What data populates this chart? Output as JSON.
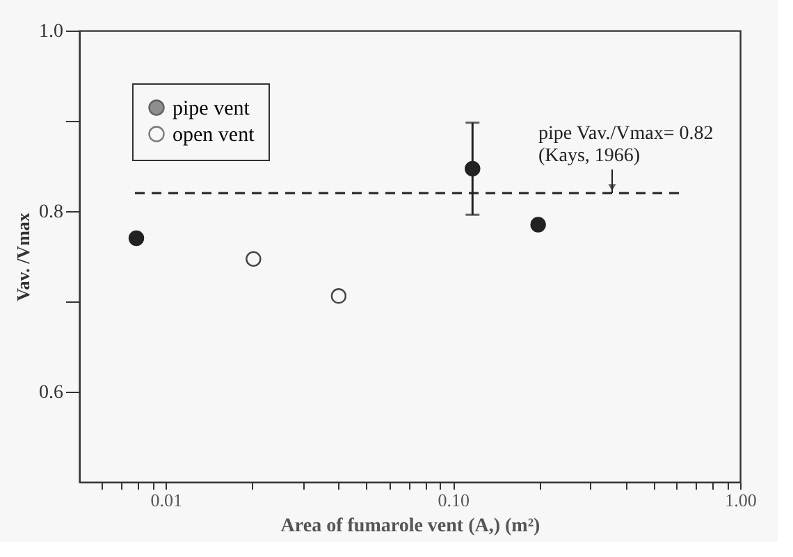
{
  "chart_data": {
    "type": "scatter",
    "xlabel": "Area of fumarole vent (A,)  (m²)",
    "ylabel": "Vav. /Vmax",
    "log": "x",
    "xlim": [
      0.005,
      1.0
    ],
    "xticks": [
      {
        "value": 0.006,
        "label": null
      },
      {
        "value": 0.007,
        "label": null
      },
      {
        "value": 0.008,
        "label": null
      },
      {
        "value": 0.009,
        "label": null
      },
      {
        "value": 0.01,
        "label": "0.01"
      },
      {
        "value": 0.02,
        "label": null
      },
      {
        "value": 0.03,
        "label": null
      },
      {
        "value": 0.04,
        "label": null
      },
      {
        "value": 0.05,
        "label": null
      },
      {
        "value": 0.06,
        "label": null
      },
      {
        "value": 0.07,
        "label": null
      },
      {
        "value": 0.08,
        "label": null
      },
      {
        "value": 0.09,
        "label": null
      },
      {
        "value": 0.1,
        "label": "0.10"
      },
      {
        "value": 0.2,
        "label": null
      },
      {
        "value": 0.3,
        "label": null
      },
      {
        "value": 0.4,
        "label": null
      },
      {
        "value": 0.5,
        "label": null
      },
      {
        "value": 0.6,
        "label": null
      },
      {
        "value": 0.7,
        "label": null
      },
      {
        "value": 0.8,
        "label": null
      },
      {
        "value": 0.9,
        "label": null
      },
      {
        "value": 1.0,
        "label": "1.00"
      }
    ],
    "ylim": [
      0.5,
      1.0
    ],
    "yticks": [
      0.6,
      {
        "value": 0.7,
        "label": null
      },
      0.8,
      {
        "value": 0.9,
        "label": null
      },
      {
        "value": 1.0,
        "label": "1.0"
      }
    ],
    "series": [
      {
        "name": "pipe vent",
        "color": "#222222",
        "marker": "circle",
        "x": [
          0.0079,
          0.117,
          0.198
        ],
        "values": [
          0.77,
          0.847,
          0.785
        ],
        "errors": [
          null,
          [
            0.796,
            0.898
          ],
          null
        ]
      },
      {
        "name": "open vent",
        "color": "#444444",
        "marker": "circle",
        "x": [
          0.0202,
          0.04
        ],
        "values": [
          0.747,
          0.706
        ]
      }
    ],
    "ref_lines": [
      {
        "axis": "y",
        "value": 0.82,
        "label": "pipe Vav./Vmax= 0.82\n(Kays, 1966)",
        "line_style": "dashed",
        "color": "#222222"
      }
    ],
    "legend": "top left",
    "grid": false
  }
}
